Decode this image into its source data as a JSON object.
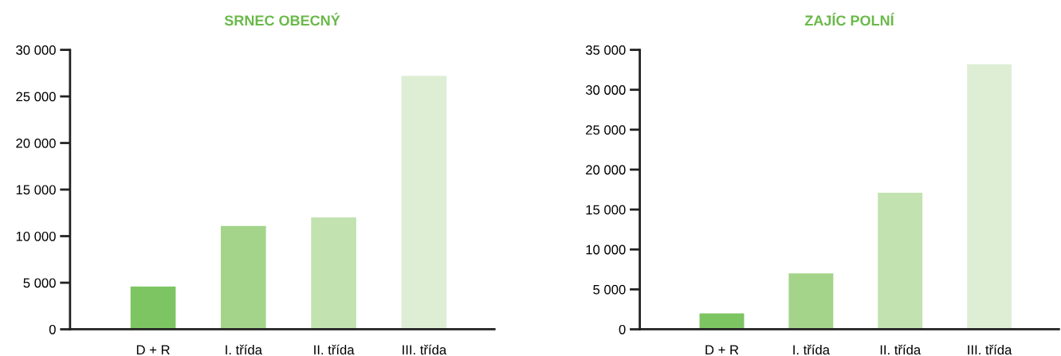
{
  "chart_data": [
    {
      "type": "bar",
      "title": "SRNEC OBECNÝ",
      "categories": [
        "D + R",
        "I. třída",
        "II. třída",
        "III. třída"
      ],
      "values": [
        4600,
        11100,
        12000,
        27200
      ],
      "colors": [
        "#7dc462",
        "#a3d48a",
        "#c2e2b0",
        "#ddeed5"
      ],
      "ylim": [
        0,
        30000
      ],
      "yticks": [
        {
          "value": 0,
          "label": "0"
        },
        {
          "value": 5000,
          "label": "5 000"
        },
        {
          "value": 10000,
          "label": "10 000"
        },
        {
          "value": 15000,
          "label": "15 000"
        },
        {
          "value": 20000,
          "label": "20 000"
        },
        {
          "value": 25000,
          "label": "25 000"
        },
        {
          "value": 30000,
          "label": "30 000"
        }
      ],
      "grid": false,
      "legend": false
    },
    {
      "type": "bar",
      "title": "ZAJÍC POLNÍ",
      "categories": [
        "D + R",
        "I. třída",
        "II. třída",
        "III. třída"
      ],
      "values": [
        2000,
        7000,
        17100,
        33200
      ],
      "colors": [
        "#7dc462",
        "#a3d48a",
        "#c2e2b0",
        "#ddeed5"
      ],
      "ylim": [
        0,
        35000
      ],
      "yticks": [
        {
          "value": 0,
          "label": "0"
        },
        {
          "value": 5000,
          "label": "5 000"
        },
        {
          "value": 10000,
          "label": "10 000"
        },
        {
          "value": 15000,
          "label": "15 000"
        },
        {
          "value": 20000,
          "label": "20 000"
        },
        {
          "value": 25000,
          "label": "25 000"
        },
        {
          "value": 30000,
          "label": "30 000"
        },
        {
          "value": 35000,
          "label": "35 000"
        }
      ],
      "grid": false,
      "legend": false
    }
  ]
}
